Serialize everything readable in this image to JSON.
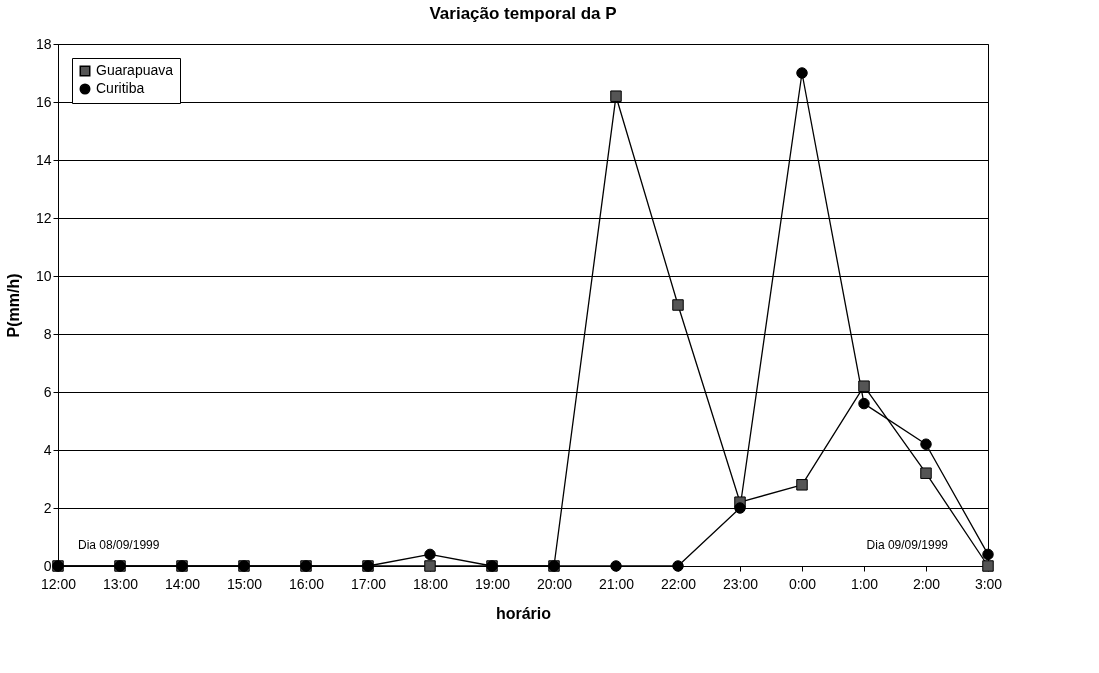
{
  "chart_data": {
    "type": "line",
    "title": "Variação temporal da P",
    "xlabel": "horário",
    "ylabel": "P(mm/h)",
    "categories": [
      "12:00",
      "13:00",
      "14:00",
      "15:00",
      "16:00",
      "17:00",
      "18:00",
      "19:00",
      "20:00",
      "21:00",
      "22:00",
      "23:00",
      "0:00",
      "1:00",
      "2:00",
      "3:00"
    ],
    "series": [
      {
        "name": "Guarapuava",
        "color": "#000000",
        "marker": "square",
        "values": [
          0,
          0,
          0,
          0,
          0,
          0,
          0,
          0,
          0,
          16.2,
          9,
          2.2,
          2.8,
          6.2,
          3.2,
          0
        ]
      },
      {
        "name": "Curitiba",
        "color": "#000000",
        "marker": "circle",
        "values": [
          0,
          0,
          0,
          0,
          0,
          0,
          0.4,
          0,
          0,
          0,
          0,
          2.0,
          17.0,
          5.6,
          4.2,
          0.4
        ]
      }
    ],
    "ylim": [
      0,
      18
    ],
    "yticks": [
      0,
      2,
      4,
      6,
      8,
      10,
      12,
      14,
      16,
      18
    ],
    "grid": "y",
    "legend": "top left",
    "annotations": [
      "Dia 08/09/1999",
      "Dia 09/09/1999"
    ]
  }
}
